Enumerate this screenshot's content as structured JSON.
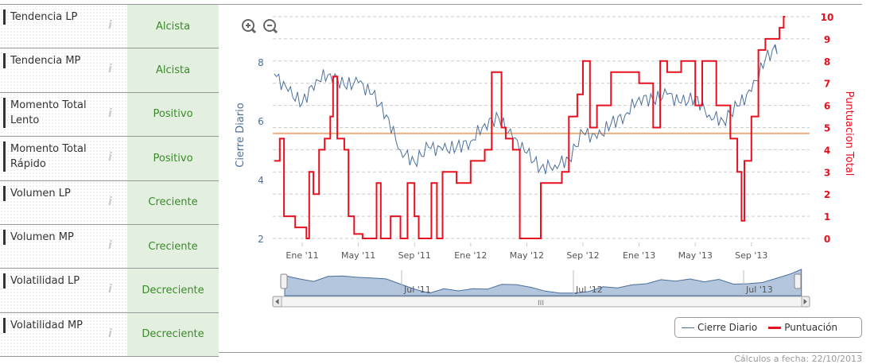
{
  "indicators": [
    {
      "label": "Tendencia LP",
      "value": "Alcista"
    },
    {
      "label": "Tendencia MP",
      "value": "Alcista"
    },
    {
      "label": "Momento Total Lento",
      "value": "Positivo"
    },
    {
      "label": "Momento Total Rápido",
      "value": "Positivo"
    },
    {
      "label": "Volumen LP",
      "value": "Creciente"
    },
    {
      "label": "Volumen MP",
      "value": "Creciente"
    },
    {
      "label": "Volatilidad LP",
      "value": "Decreciente"
    },
    {
      "label": "Volatilidad MP",
      "value": "Decreciente"
    }
  ],
  "info_icon": "i",
  "footer": "Cálculos a fecha: 22/10/2013",
  "legend": {
    "series1": "Cierre Diario",
    "series2": "Puntuación"
  },
  "navigator": {
    "labels": [
      "Jul '11",
      "Jul '12",
      "Jul '13"
    ],
    "scroll_grip": "III"
  },
  "colors": {
    "close": "#4a6f9a",
    "score": "#e8101e",
    "ref": "#f0b080",
    "value_green": "#3a8a2a"
  },
  "chart_data": {
    "type": "line",
    "xlabel": "",
    "ylabel": "Cierre Diario",
    "y2label": "Puntuacion Total",
    "x_ticks": [
      "Ene '11",
      "May '11",
      "Sep '11",
      "Ene '12",
      "May '12",
      "Sep '12",
      "Ene '13",
      "May '13",
      "Sep '13"
    ],
    "x_tick_months": [
      0,
      4,
      8,
      12,
      16,
      20,
      24,
      28,
      32
    ],
    "ylim": [
      2,
      9
    ],
    "y_ticks": [
      2,
      4,
      6,
      8
    ],
    "y2lim": [
      0,
      10
    ],
    "y2_ticks": [
      0,
      1,
      2,
      3,
      4,
      5,
      6,
      7,
      8,
      9,
      10
    ],
    "reference_line": 5.57,
    "series": [
      {
        "name": "Cierre Diario",
        "x_month": [
          -2,
          -1,
          0,
          1,
          2,
          3,
          4,
          5,
          6,
          7,
          8,
          9,
          10,
          11,
          12,
          13,
          14,
          15,
          16,
          17,
          18,
          19,
          20,
          21,
          22,
          23,
          24,
          25,
          26,
          27,
          28,
          29,
          30,
          31,
          32,
          33,
          33.7
        ],
        "values": [
          7.6,
          7.0,
          6.6,
          7.4,
          7.6,
          7.2,
          7.3,
          6.9,
          6.2,
          5.0,
          4.6,
          5.1,
          5.0,
          5.1,
          5.3,
          5.9,
          6.1,
          5.4,
          4.9,
          4.4,
          4.5,
          4.7,
          5.6,
          5.4,
          5.9,
          6.2,
          6.8,
          6.7,
          6.9,
          6.6,
          6.8,
          6.2,
          6.0,
          6.5,
          7.0,
          8.1,
          8.6
        ]
      },
      {
        "name": "Puntuación",
        "step": true,
        "x_month": [
          -2,
          -1.6,
          -1.3,
          -0.5,
          0.3,
          0.5,
          0.8,
          1.2,
          1.6,
          2,
          2.2,
          2.5,
          3,
          3.3,
          3.7,
          4.3,
          5.3,
          5.6,
          6.3,
          7,
          7.5,
          8,
          8.3,
          9.2,
          9.6,
          10,
          11,
          12,
          13,
          13.5,
          14.2,
          14.5,
          15,
          15.5,
          16.5,
          17,
          18.5,
          19,
          19.6,
          20,
          20.5,
          21,
          22,
          24,
          25,
          25.5,
          26,
          27,
          28,
          28.5,
          29.5,
          30.5,
          31,
          31.3,
          31.5,
          32,
          32.5,
          33,
          34,
          34.3
        ],
        "values": [
          3.5,
          4.5,
          1,
          0.5,
          0,
          3,
          2,
          4,
          4.5,
          5.5,
          7.3,
          4.5,
          4,
          1,
          0.2,
          0,
          2.5,
          0,
          1,
          0,
          2.5,
          1,
          0,
          2.5,
          0,
          3,
          2.5,
          3.5,
          4,
          7.5,
          5,
          4.5,
          4,
          0,
          0,
          2.5,
          3,
          5.5,
          6.5,
          8,
          5,
          6,
          7.5,
          7,
          5,
          8,
          7.5,
          8,
          6,
          8,
          6,
          4.5,
          3,
          0.8,
          3.5,
          5.5,
          8.5,
          9,
          9.5,
          10
        ]
      }
    ]
  }
}
